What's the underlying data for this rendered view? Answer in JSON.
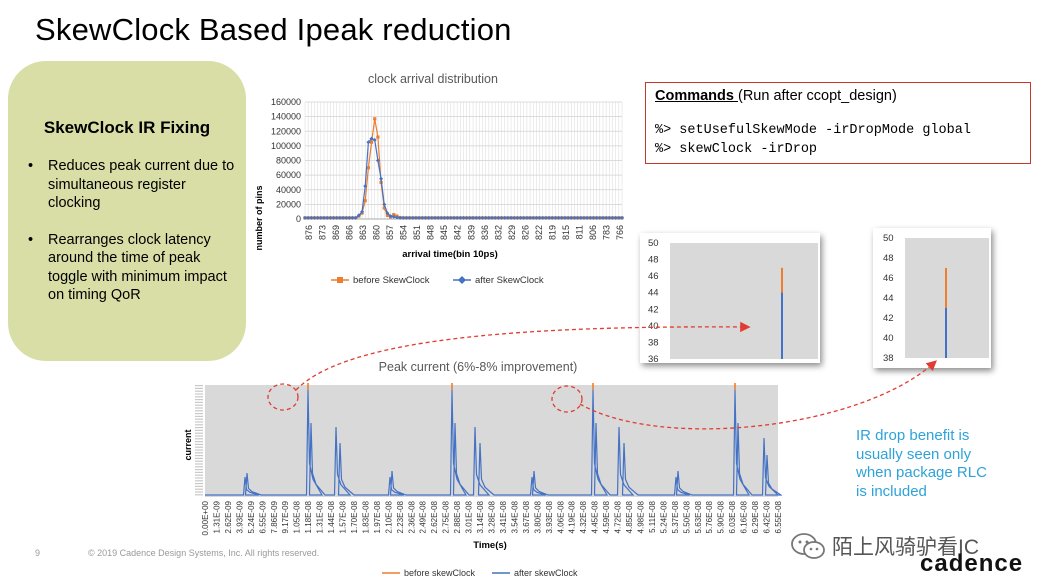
{
  "slide": {
    "title": "SkewClock Based Ipeak reduction",
    "slide_number": "9",
    "copyright": "© 2019 Cadence Design Systems, Inc. All rights reserved.",
    "logo_text": "cadence",
    "watermark_text": "陌上风骑驴看IC"
  },
  "fixing_box": {
    "title": "SkewClock IR Fixing",
    "bullets": [
      "Reduces peak current due to simultaneous register clocking",
      "Rearranges clock latency around the time of peak toggle with minimum impact on timing QoR"
    ]
  },
  "commands": {
    "heading": "Commands ",
    "heading_suffix": "(Run after ccopt_design)",
    "lines": [
      "%> setUsefulSkewMode -irDropMode global",
      "%> skewClock -irDrop"
    ]
  },
  "note": "IR drop benefit is usually seen only when package RLC is included",
  "colors": {
    "before": "#ed7d31",
    "after": "#4472c4",
    "plot_bg": "#d9d9d9",
    "green_box": "#d9dea6",
    "callout": "#e03c31",
    "note": "#2ea3d8"
  },
  "chart_data": [
    {
      "type": "line",
      "title": "clock arrival distribution",
      "xlabel": "arrival time(bin 10ps)",
      "ylabel": "number of pins",
      "ylim": [
        0,
        160000
      ],
      "yticks": [
        "0",
        "20000",
        "40000",
        "60000",
        "80000",
        "100000",
        "120000",
        "140000",
        "160000"
      ],
      "categories": [
        "876",
        "873",
        "869",
        "866",
        "863",
        "860",
        "857",
        "854",
        "851",
        "848",
        "845",
        "842",
        "839",
        "836",
        "832",
        "829",
        "826",
        "822",
        "819",
        "815",
        "811",
        "806",
        "783",
        "766"
      ],
      "bins": 101,
      "legend": "bottom",
      "series": [
        {
          "name": "before SkewClock",
          "color": "#ed7d31",
          "peaks": [
            [
              17,
              4000
            ],
            [
              18,
              8000
            ],
            [
              19,
              25000
            ],
            [
              20,
              70000
            ],
            [
              21,
              105000
            ],
            [
              22,
              137000
            ],
            [
              23,
              112000
            ],
            [
              24,
              50000
            ],
            [
              25,
              15000
            ],
            [
              26,
              5000
            ],
            [
              27,
              3000
            ],
            [
              28,
              6000
            ],
            [
              29,
              4000
            ],
            [
              30,
              2000
            ]
          ]
        },
        {
          "name": "after SkewClock",
          "color": "#4472c4",
          "peaks": [
            [
              17,
              5000
            ],
            [
              18,
              10000
            ],
            [
              19,
              45000
            ],
            [
              20,
              105000
            ],
            [
              21,
              110000
            ],
            [
              22,
              108000
            ],
            [
              23,
              80000
            ],
            [
              24,
              55000
            ],
            [
              25,
              20000
            ],
            [
              26,
              8000
            ],
            [
              27,
              4000
            ],
            [
              28,
              3000
            ],
            [
              29,
              2000
            ]
          ]
        }
      ]
    },
    {
      "type": "line",
      "title": "Peak current  (6%-8% improvement)",
      "xlabel": "Time(s)",
      "ylabel": "current",
      "categories": [
        "0.00E+00",
        "1.31E-09",
        "2.62E-09",
        "3.93E-09",
        "5.24E-09",
        "6.55E-09",
        "7.86E-09",
        "9.17E-09",
        "1.05E-08",
        "1.18E-08",
        "1.31E-08",
        "1.44E-08",
        "1.57E-08",
        "1.70E-08",
        "1.83E-08",
        "1.97E-08",
        "2.10E-08",
        "2.23E-08",
        "2.36E-08",
        "2.49E-08",
        "2.62E-08",
        "2.75E-08",
        "2.88E-08",
        "3.01E-08",
        "3.14E-08",
        "3.28E-08",
        "3.41E-08",
        "3.54E-08",
        "3.67E-08",
        "3.80E-08",
        "3.93E-08",
        "4.06E-08",
        "4.19E-08",
        "4.32E-08",
        "4.45E-08",
        "4.59E-08",
        "4.72E-08",
        "4.85E-08",
        "4.98E-08",
        "5.11E-08",
        "5.24E-08",
        "5.37E-08",
        "5.50E-08",
        "5.63E-08",
        "5.76E-08",
        "5.90E-08",
        "6.03E-08",
        "6.16E-08",
        "6.29E-08",
        "6.42E-08",
        "6.55E-08"
      ],
      "legend": "bottom",
      "series": [
        {
          "name": "before skewClock",
          "color": "#ed7d31"
        },
        {
          "name": "after skewClock",
          "color": "#4472c4"
        }
      ]
    },
    {
      "type": "bar",
      "ylim": [
        36,
        50
      ],
      "yticks": [
        "36",
        "38",
        "40",
        "42",
        "44",
        "46",
        "48",
        "50"
      ],
      "values": {
        "before": 47,
        "after": 44
      }
    },
    {
      "type": "bar",
      "ylim": [
        38,
        50
      ],
      "yticks": [
        "38",
        "40",
        "42",
        "44",
        "46",
        "48",
        "50"
      ],
      "values": {
        "before": 47,
        "after": 43
      }
    }
  ]
}
